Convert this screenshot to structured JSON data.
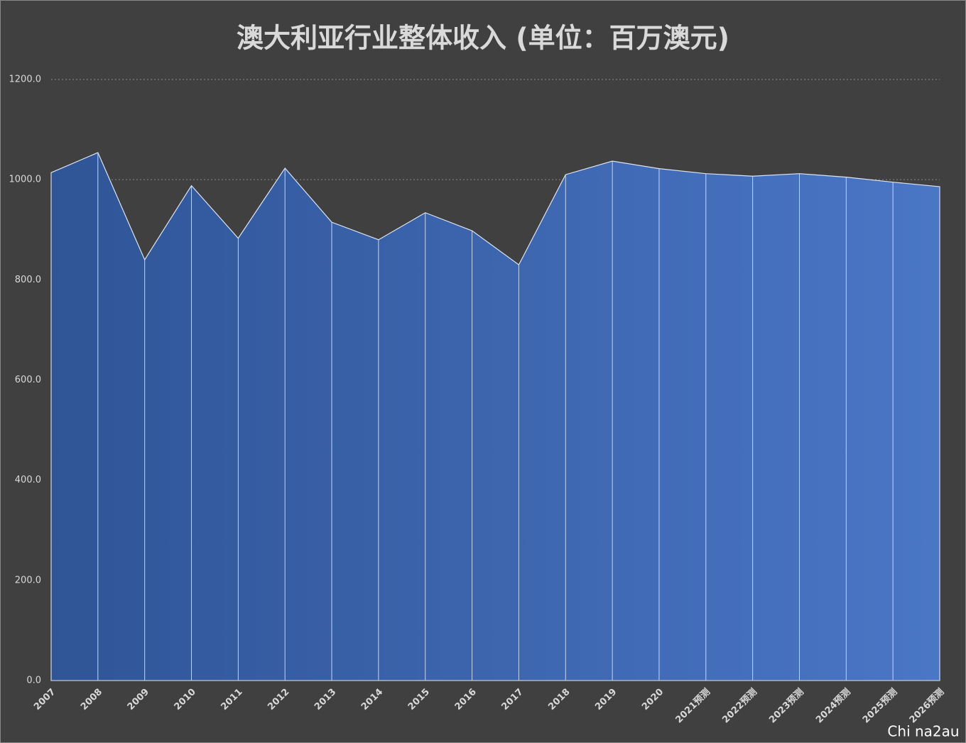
{
  "chart_data": {
    "type": "area",
    "title": "澳大利亚行业整体收入 (单位：百万澳元)",
    "categories": [
      "2007",
      "2008",
      "2009",
      "2010",
      "2011",
      "2012",
      "2013",
      "2014",
      "2015",
      "2016",
      "2017",
      "2018",
      "2019",
      "2020",
      "2021预测",
      "2022预测",
      "2023预测",
      "2024预测",
      "2025预测",
      "2026预测"
    ],
    "values": [
      1014,
      1054,
      840,
      988,
      883,
      1023,
      915,
      880,
      934,
      898,
      830,
      1010,
      1037,
      1022,
      1012,
      1007,
      1012,
      1005,
      995,
      986
    ],
    "color": [
      "#2f5597",
      "#4a76c6"
    ],
    "ylim": [
      0,
      1200
    ],
    "yticks": [
      {
        "value": 0,
        "label": "0.0"
      },
      {
        "value": 200,
        "label": "200.0"
      },
      {
        "value": 400,
        "label": "400.0"
      },
      {
        "value": 600,
        "label": "600.0"
      },
      {
        "value": 800,
        "label": "800.0"
      },
      {
        "value": 1000,
        "label": "1000.0"
      },
      {
        "value": 1200,
        "label": "1200.0"
      }
    ],
    "grid": true,
    "watermark": "Chi na2au"
  }
}
